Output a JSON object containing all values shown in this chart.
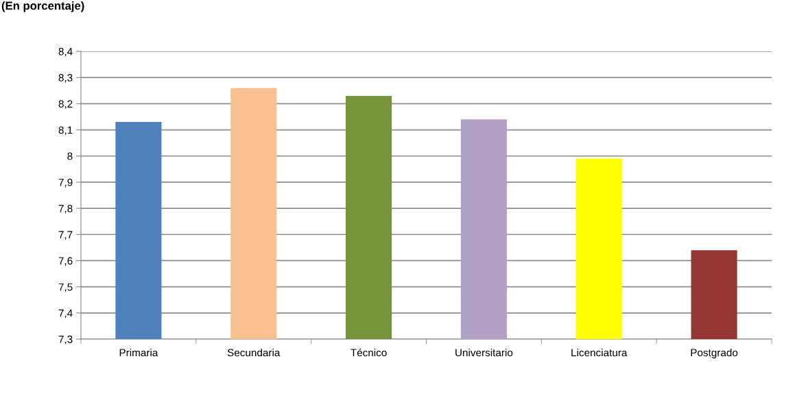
{
  "chart_data": {
    "type": "bar",
    "title": "(En porcentaje)",
    "categories": [
      "Primaria",
      "Secundaria",
      "Técnico",
      "Universitario",
      "Licenciatura",
      "Postgrado"
    ],
    "values": [
      8.13,
      8.26,
      8.23,
      8.14,
      7.99,
      7.64
    ],
    "colors": [
      "#4f81bd",
      "#f9c090",
      "#77933c",
      "#b2a1c7",
      "#ffff00",
      "#953735"
    ],
    "ylim": [
      7.3,
      8.4
    ],
    "yticks": [
      {
        "value": 7.3,
        "label": "7,3"
      },
      {
        "value": 7.4,
        "label": "7,4"
      },
      {
        "value": 7.5,
        "label": "7,5"
      },
      {
        "value": 7.6,
        "label": "7,6"
      },
      {
        "value": 7.7,
        "label": "7,7"
      },
      {
        "value": 7.8,
        "label": "7,8"
      },
      {
        "value": 7.9,
        "label": "7,9"
      },
      {
        "value": 8,
        "label": "8"
      },
      {
        "value": 8.1,
        "label": "8,1"
      },
      {
        "value": 8.2,
        "label": "8,2"
      },
      {
        "value": 8.3,
        "label": "8,3"
      },
      {
        "value": 8.4,
        "label": "8,4"
      }
    ],
    "grid": "y"
  }
}
